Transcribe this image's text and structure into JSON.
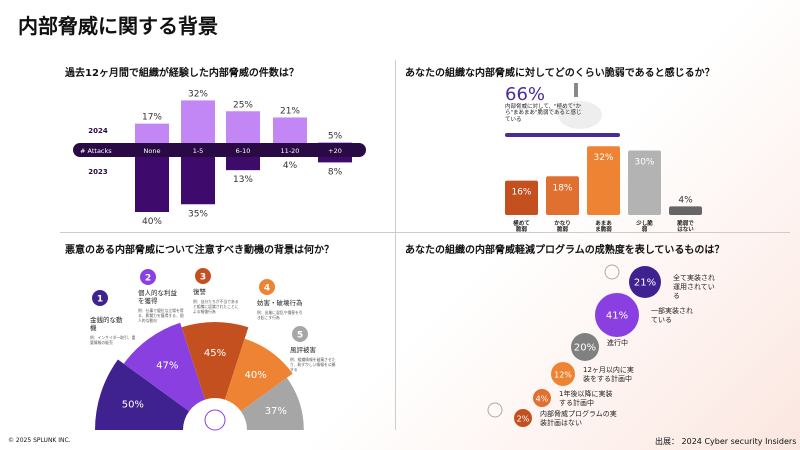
{
  "title": "内部脅威に関する背景",
  "footer": {
    "copyright": "© 2025 SPLUNK INC.",
    "source": "出展： 2024 Cyber security Insiders"
  },
  "chart_data": [
    {
      "type": "bar",
      "title": "過去12ヶ月間で組織が経験した内部脅威の件数は？",
      "axis_label": "# Attacks",
      "categories": [
        "None",
        "1-5",
        "6-10",
        "11-20",
        "+20"
      ],
      "series": [
        {
          "name": "2024",
          "values": [
            17,
            32,
            25,
            21,
            5
          ],
          "color": "#C387F5"
        },
        {
          "name": "2023",
          "values": [
            40,
            35,
            13,
            4,
            8
          ],
          "color": "#3E0A6B"
        }
      ],
      "unit": "%"
    },
    {
      "type": "bar",
      "title": "あなたの組織な内部脅威に対してどのくらい脆弱であると感じるか？",
      "highlight": {
        "value": "66%",
        "text": "内部脅威に対して、\"極めて\"から\"まあまあ\"脆弱であると感じている",
        "color": "#4B2A9A"
      },
      "categories": [
        "極めて脆弱",
        "かなり脆弱",
        "あまあま脆弱",
        "少し脆弱",
        "脆弱ではない"
      ],
      "values": [
        16,
        18,
        32,
        30,
        4
      ],
      "colors": [
        "#C4501F",
        "#E07030",
        "#EE8433",
        "#B3B3B3",
        "#666666"
      ],
      "unit": "%"
    },
    {
      "type": "pie",
      "title": "悪意のある内部脅威について注意すべき動機の背景は何か？",
      "items": [
        {
          "num": "1",
          "label": "金銭的な動機",
          "desc": "例：インサイダー取引、重要情報の販売",
          "value": 50,
          "color": "#3F2290"
        },
        {
          "num": "2",
          "label": "個人的な利益を獲得",
          "desc": "例：仕事で優位な立場を得る、影響力を獲得する、個人的な動向",
          "value": 47,
          "color": "#8A3FE0"
        },
        {
          "num": "3",
          "label": "復讐",
          "desc": "例：自分たちが不当であると組織に認識されたことによる報復行為",
          "value": 45,
          "color": "#C4501F"
        },
        {
          "num": "4",
          "label": "妨害・破壊行為",
          "desc": "例：出業に混乱や損害を引き起こす行為",
          "value": 40,
          "color": "#EE8433"
        },
        {
          "num": "5",
          "label": "風評被害",
          "desc": "例：組織情報を破棄させたり、恥ずかしい情報を公開する",
          "value": 37,
          "color": "#A6A6A6"
        }
      ],
      "unit": "%"
    },
    {
      "type": "scatter",
      "title": "あなたの組織の内部脅威軽減プログラムの成熟度を表しているものは？",
      "items": [
        {
          "label": "全て実装され運用されている",
          "value": 21,
          "color": "#3F2290"
        },
        {
          "label": "一部実装されている",
          "value": 41,
          "color": "#8A3FE0"
        },
        {
          "label": "進行中",
          "value": 20,
          "color": "#808080"
        },
        {
          "label": "12ヶ月以内に実装をする計画中",
          "value": 12,
          "color": "#EE8433"
        },
        {
          "label": "1年後以降に実装する計画中",
          "value": 4,
          "color": "#E07030"
        },
        {
          "label": "内部脅威プログラムの実装計画はない",
          "value": 2,
          "color": "#C4501F"
        }
      ],
      "unit": "%"
    }
  ]
}
